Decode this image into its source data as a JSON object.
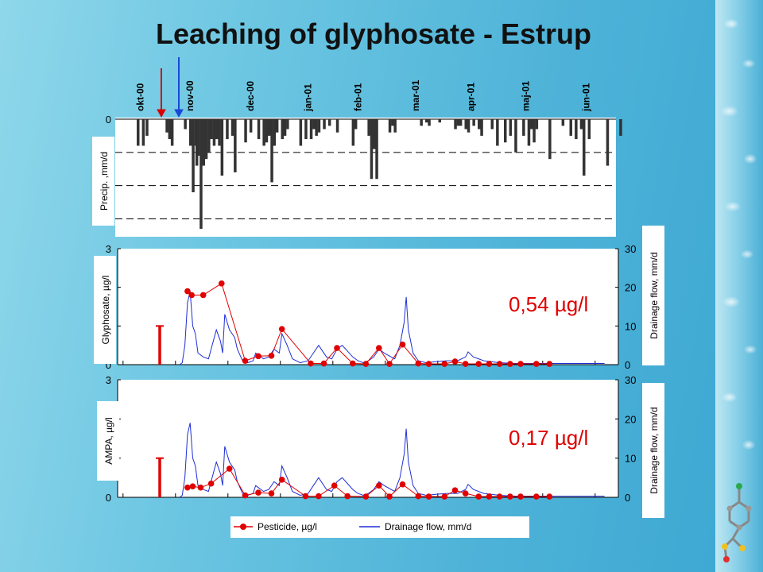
{
  "slide": {
    "title": "Leaching of glyphosate - Estrup"
  },
  "colors": {
    "precip": "#333333",
    "pesticide": "#e00000",
    "drainage": "#1e2ed6",
    "arrow_red": "#d80000",
    "arrow_blue": "#1848d8"
  },
  "chart_data": [
    {
      "type": "bar",
      "ylabel": "Precip. ,mm/d",
      "ylim": [
        0,
        33
      ],
      "yticks": [
        0,
        10,
        20,
        30
      ],
      "inverted": true,
      "grid": "dashed-horizontal",
      "months": [
        "okt-00",
        "nov-00",
        "dec-00",
        "jan-01",
        "feb-01",
        "mar-01",
        "apr-01",
        "maj-01",
        "jun-01"
      ],
      "month_x": [
        0.25,
        1.2,
        2.35,
        3.45,
        4.4,
        5.5,
        6.55,
        7.6,
        8.75
      ],
      "x": [
        0.0,
        0.1,
        0.17,
        0.55,
        0.6,
        0.65,
        0.9,
        1.0,
        1.05,
        1.1,
        1.12,
        1.15,
        1.2,
        1.25,
        1.3,
        1.35,
        1.4,
        1.45,
        1.5,
        1.55,
        1.6,
        1.7,
        1.8,
        1.85,
        2.05,
        2.15,
        2.3,
        2.4,
        2.45,
        2.5,
        2.55,
        2.6,
        2.65,
        2.75,
        2.8,
        2.85,
        3.1,
        3.2,
        3.3,
        3.35,
        3.4,
        3.45,
        3.55,
        3.65,
        3.8,
        4.1,
        4.15,
        4.4,
        4.45,
        4.5,
        4.55,
        4.8,
        4.85,
        4.9,
        5.4,
        5.5,
        5.55,
        5.75,
        6.05,
        6.1,
        6.15,
        6.25,
        6.3,
        6.4,
        6.5,
        6.55,
        6.75,
        6.85,
        7.0,
        7.1,
        7.2,
        7.35,
        7.45,
        7.5,
        7.55,
        7.6,
        7.85,
        8.1,
        8.25,
        8.35,
        8.45,
        8.5,
        8.6,
        8.95,
        9.2
      ],
      "values": [
        8,
        8,
        5,
        4,
        6,
        8,
        3,
        8,
        22,
        8,
        14,
        11,
        33,
        14,
        12,
        10,
        6,
        8,
        6,
        8,
        17,
        6,
        5,
        16,
        7,
        4,
        6,
        8,
        7,
        5,
        19,
        8,
        4,
        6,
        5,
        3,
        8,
        6,
        6,
        3,
        5,
        4,
        3,
        2,
        4,
        8,
        3,
        5,
        18,
        9,
        18,
        4,
        2,
        4,
        2,
        1,
        2,
        1,
        3,
        2,
        2,
        3,
        4,
        2,
        3,
        5,
        3,
        8,
        7,
        5,
        10,
        5,
        8,
        3,
        7,
        3,
        12,
        2,
        5,
        6,
        3,
        17,
        6,
        14,
        5
      ],
      "xlim": [
        -0.1,
        9.4
      ]
    },
    {
      "type": "line",
      "ylabel": "Glyphosate, µg/l",
      "y2label": "Drainage flow, mm/d",
      "ylim": [
        0,
        3
      ],
      "y2lim": [
        0,
        30
      ],
      "yticks": [
        0,
        1,
        2,
        3
      ],
      "y2ticks": [
        0,
        10,
        20,
        30
      ],
      "annotation": "0,54 µg/l",
      "marker_spike": {
        "x": 0.0,
        "y": 1.0
      },
      "series": [
        {
          "name": "Pesticide, µg/l",
          "x": [
            1.15,
            1.23,
            1.45,
            1.8,
            2.25,
            2.5,
            2.75,
            2.95,
            3.5,
            3.75,
            4.0,
            4.3,
            4.55,
            4.8,
            5.0,
            5.25,
            5.55,
            5.75,
            6.05,
            6.25,
            6.45,
            6.7,
            6.9,
            7.1,
            7.3,
            7.5,
            7.8,
            8.05
          ],
          "values": [
            1.9,
            1.8,
            1.8,
            2.1,
            0.1,
            0.22,
            0.23,
            0.92,
            0.03,
            0.03,
            0.43,
            0.03,
            0.02,
            0.43,
            0.02,
            0.52,
            0.03,
            0.02,
            0.02,
            0.08,
            0.02,
            0.02,
            0.02,
            0.02,
            0.02,
            0.02,
            0.02,
            0.02
          ]
        },
        {
          "name": "Drainage flow, mm/d",
          "x": [
            1.0,
            1.05,
            1.1,
            1.15,
            1.2,
            1.25,
            1.3,
            1.35,
            1.45,
            1.55,
            1.62,
            1.7,
            1.78,
            1.82,
            1.86,
            1.95,
            2.05,
            2.1,
            2.15,
            2.2,
            2.3,
            2.4,
            2.45,
            2.5,
            2.6,
            2.7,
            2.8,
            2.9,
            2.95,
            3.05,
            3.15,
            3.3,
            3.45,
            3.55,
            3.65,
            3.8,
            3.9,
            4.0,
            4.1,
            4.3,
            4.4,
            4.5,
            4.6,
            4.7,
            4.8,
            4.9,
            5.1,
            5.2,
            5.28,
            5.32,
            5.36,
            5.45,
            5.55,
            5.7,
            5.9,
            6.1,
            6.3,
            6.45,
            6.5,
            6.6,
            6.8,
            7.1,
            7.4,
            7.7,
            8.0,
            8.3,
            8.7,
            9.1
          ],
          "values": [
            0,
            0.5,
            5,
            16,
            19,
            10,
            8,
            3,
            2,
            1.5,
            5,
            9,
            6,
            3,
            13,
            9,
            7,
            4,
            2.5,
            1,
            0.5,
            1,
            3,
            2.5,
            1.5,
            2,
            4,
            3,
            8,
            5,
            1.5,
            0.5,
            1,
            3,
            5,
            2,
            1.5,
            4,
            5,
            2,
            1,
            0.5,
            1,
            2,
            4,
            3,
            1.5,
            5,
            11,
            17.5,
            9,
            3,
            1,
            0.5,
            0.8,
            1,
            1,
            2,
            3.3,
            2,
            1,
            0.5,
            0.3,
            0.3,
            0.3,
            0.3,
            0.3,
            0.3
          ]
        }
      ]
    },
    {
      "type": "line",
      "ylabel": "AMPA, µg/l",
      "y2label": "Drainage flow, mm/d",
      "ylim": [
        0,
        3
      ],
      "y2lim": [
        0,
        30
      ],
      "yticks": [
        0,
        1,
        2,
        3
      ],
      "y2ticks": [
        0,
        10,
        20,
        30
      ],
      "annotation": "0,17 µg/l",
      "marker_spike": {
        "x": 0.0,
        "y": 1.0
      },
      "series": [
        {
          "name": "Pesticide, µg/l",
          "x": [
            1.15,
            1.25,
            1.4,
            1.6,
            1.95,
            2.25,
            2.5,
            2.75,
            2.95,
            3.4,
            3.65,
            3.95,
            4.2,
            4.55,
            4.8,
            5.0,
            5.25,
            5.55,
            5.75,
            6.05,
            6.25,
            6.45,
            6.7,
            6.9,
            7.1,
            7.3,
            7.5,
            7.8,
            8.05
          ],
          "values": [
            0.25,
            0.28,
            0.25,
            0.35,
            0.73,
            0.05,
            0.12,
            0.1,
            0.45,
            0.03,
            0.03,
            0.3,
            0.03,
            0.02,
            0.3,
            0.02,
            0.33,
            0.03,
            0.02,
            0.02,
            0.18,
            0.1,
            0.02,
            0.02,
            0.02,
            0.02,
            0.02,
            0.02,
            0.02
          ]
        },
        {
          "name": "Drainage flow, mm/d",
          "x": [
            1.0,
            1.05,
            1.1,
            1.15,
            1.2,
            1.25,
            1.3,
            1.35,
            1.45,
            1.55,
            1.62,
            1.7,
            1.78,
            1.82,
            1.86,
            1.95,
            2.05,
            2.1,
            2.15,
            2.2,
            2.3,
            2.4,
            2.45,
            2.5,
            2.6,
            2.7,
            2.8,
            2.9,
            2.95,
            3.05,
            3.15,
            3.3,
            3.45,
            3.55,
            3.65,
            3.8,
            3.9,
            4.0,
            4.1,
            4.3,
            4.4,
            4.5,
            4.6,
            4.7,
            4.8,
            4.9,
            5.1,
            5.2,
            5.28,
            5.32,
            5.36,
            5.45,
            5.55,
            5.7,
            5.9,
            6.1,
            6.3,
            6.45,
            6.5,
            6.6,
            6.8,
            7.1,
            7.4,
            7.7,
            8.0,
            8.3,
            8.7,
            9.1
          ],
          "values": [
            0,
            0.5,
            5,
            16,
            19,
            10,
            8,
            3,
            2,
            1.5,
            5,
            9,
            6,
            3,
            13,
            9,
            7,
            4,
            2.5,
            1,
            0.5,
            1,
            3,
            2.5,
            1.5,
            2,
            4,
            3,
            8,
            5,
            1.5,
            0.5,
            1,
            3,
            5,
            2,
            1.5,
            4,
            5,
            2,
            1,
            0.5,
            1,
            2,
            4,
            3,
            1.5,
            5,
            11,
            17.5,
            9,
            3,
            1,
            0.5,
            0.8,
            1,
            1,
            2,
            3.3,
            2,
            1,
            0.5,
            0.3,
            0.3,
            0.3,
            0.3,
            0.3,
            0.3
          ]
        }
      ]
    }
  ],
  "legend": {
    "pesticide": "Pesticide, µg/l",
    "drainage": "Drainage flow, mm/d"
  }
}
